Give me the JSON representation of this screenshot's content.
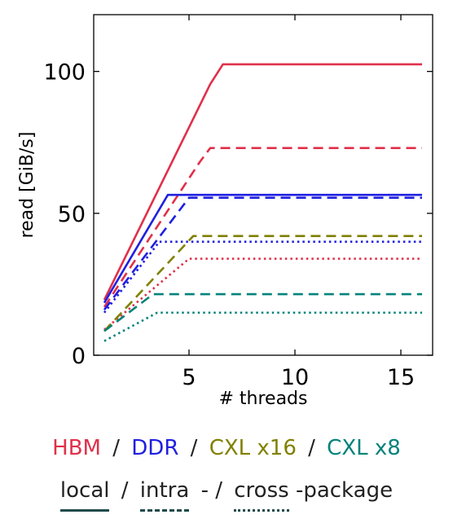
{
  "chart_data": {
    "type": "line",
    "title": "",
    "xlabel": "# threads",
    "ylabel": "read [GiB/s]",
    "xlim": [
      0.5,
      16.5
    ],
    "ylim": [
      0,
      120
    ],
    "xticks": [
      5,
      10,
      15
    ],
    "yticks": [
      0,
      50,
      100
    ],
    "xtick_labels": [
      "5",
      "10",
      "15"
    ],
    "ytick_labels": [
      "0",
      "50",
      "100"
    ],
    "grid": false,
    "series": [
      {
        "memory": "HBM",
        "placement": "local",
        "color": "#e0304a",
        "style": "solid",
        "x": [
          1,
          6,
          6.6,
          16
        ],
        "y": [
          19.5,
          95.5,
          102.5,
          102.5
        ]
      },
      {
        "memory": "HBM",
        "placement": "intra",
        "color": "#e0304a",
        "style": "dashed",
        "x": [
          1,
          5.5,
          6,
          16
        ],
        "y": [
          17,
          68,
          73,
          73
        ]
      },
      {
        "memory": "HBM",
        "placement": "cross",
        "color": "#e0304a",
        "style": "dotted",
        "x": [
          1,
          5,
          16
        ],
        "y": [
          9,
          34,
          34
        ]
      },
      {
        "memory": "DDR",
        "placement": "local",
        "color": "#2020e0",
        "style": "solid",
        "x": [
          1,
          4,
          16
        ],
        "y": [
          18.5,
          56.5,
          56.5
        ]
      },
      {
        "memory": "DDR",
        "placement": "intra",
        "color": "#2020e0",
        "style": "dashed",
        "x": [
          1,
          5,
          16
        ],
        "y": [
          16,
          55.5,
          55.5
        ]
      },
      {
        "memory": "DDR",
        "placement": "cross",
        "color": "#2020e0",
        "style": "dotted",
        "x": [
          1,
          3.6,
          16
        ],
        "y": [
          15,
          40,
          40
        ]
      },
      {
        "memory": "CXL x16",
        "placement": "intra",
        "color": "#808000",
        "style": "dashed",
        "x": [
          1,
          5.2,
          16
        ],
        "y": [
          8.5,
          42,
          42
        ]
      },
      {
        "memory": "CXL x8",
        "placement": "intra",
        "color": "#00827a",
        "style": "dashed",
        "x": [
          1,
          3.3,
          16
        ],
        "y": [
          8.5,
          21.5,
          21.5
        ]
      },
      {
        "memory": "CXL x8",
        "placement": "cross",
        "color": "#00827a",
        "style": "dotted",
        "x": [
          1,
          3.5,
          16
        ],
        "y": [
          5,
          15,
          15
        ]
      }
    ]
  },
  "legend": {
    "memory": [
      {
        "label": "HBM",
        "color": "#e0304a"
      },
      {
        "label": "DDR",
        "color": "#2020e0"
      },
      {
        "label": "CXL x16",
        "color": "#808000"
      },
      {
        "label": "CXL x8",
        "color": "#00827a"
      }
    ],
    "separator": "/",
    "styles": {
      "local": "local",
      "sep1": "/",
      "intra": "intra",
      "sep2": "- /",
      "cross": "cross",
      "suffix": "-package"
    }
  }
}
